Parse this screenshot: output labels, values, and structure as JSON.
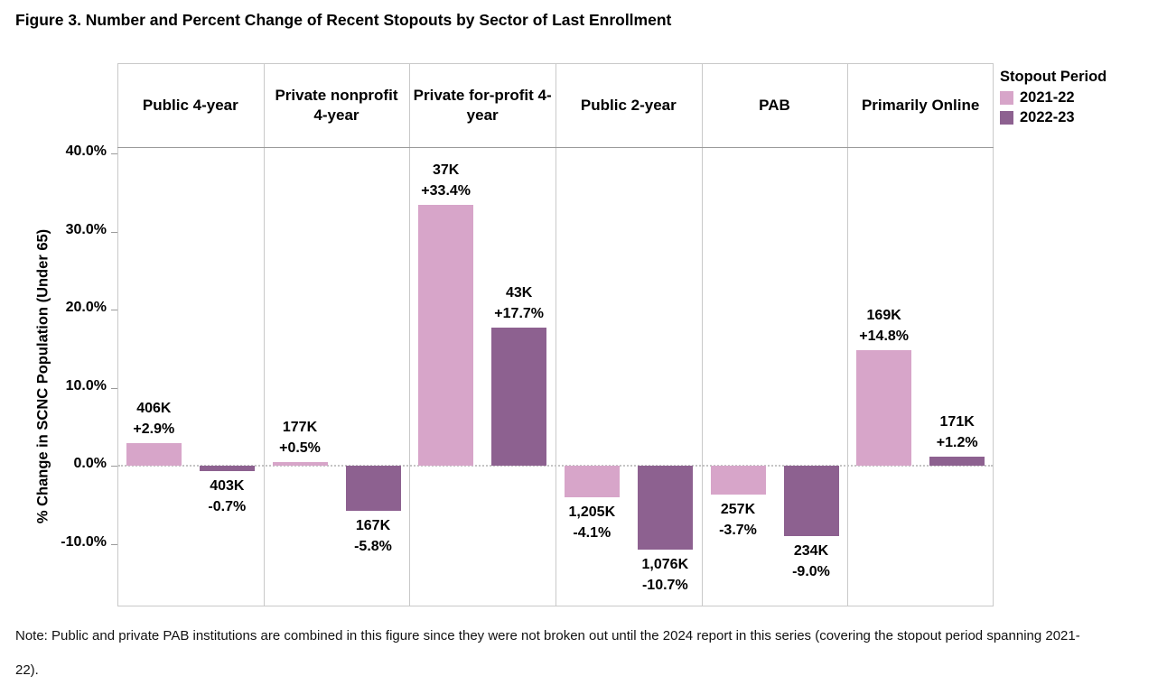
{
  "title": "Figure 3. Number and Percent Change of Recent Stopouts by Sector of Last Enrollment",
  "note": "Note: Public and private PAB institutions are combined in this figure since they were not broken out until the 2024 report in this series (covering the stopout period spanning 2021-22).",
  "colors": {
    "series_2021_22": "#d7a5c9",
    "series_2022_23": "#8d6190",
    "panel_border": "#c9c9c9",
    "header_rule": "#9a9a9a",
    "zero_line": "#c4c4c4"
  },
  "chart_data": {
    "type": "bar",
    "title": "Figure 3. Number and Percent Change of Recent Stopouts by Sector of Last Enrollment",
    "xlabel": "",
    "ylabel": "% Change in SCNC Population (Under 65)",
    "ylim": [
      -18,
      40.8
    ],
    "yticks": [
      {
        "value": 40,
        "label": "40.0%"
      },
      {
        "value": 30,
        "label": "30.0%"
      },
      {
        "value": 20,
        "label": "20.0%"
      },
      {
        "value": 10,
        "label": "10.0%"
      },
      {
        "value": 0,
        "label": "0.0%"
      },
      {
        "value": -10,
        "label": "-10.0%"
      }
    ],
    "grid": "zero-line-dotted-only",
    "categories": [
      "Public 4-year",
      "Private nonprofit 4-year",
      "Private for-profit 4-year",
      "Public 2-year",
      "PAB",
      "Primarily Online"
    ],
    "legend": {
      "title": "Stopout Period",
      "position": "top-right",
      "entries": [
        {
          "label": "2021-22",
          "color": "#d7a5c9"
        },
        {
          "label": "2022-23",
          "color": "#8d6190"
        }
      ]
    },
    "series": [
      {
        "name": "2021-22",
        "color": "#d7a5c9",
        "points": [
          {
            "category": "Public 4-year",
            "count": "406K",
            "pct": "+2.9%",
            "value": 2.9
          },
          {
            "category": "Private nonprofit 4-year",
            "count": "177K",
            "pct": "+0.5%",
            "value": 0.5
          },
          {
            "category": "Private for-profit 4-year",
            "count": "37K",
            "pct": "+33.4%",
            "value": 33.4
          },
          {
            "category": "Public 2-year",
            "count": "1,205K",
            "pct": "-4.1%",
            "value": -4.1
          },
          {
            "category": "PAB",
            "count": "257K",
            "pct": "-3.7%",
            "value": -3.7
          },
          {
            "category": "Primarily Online",
            "count": "169K",
            "pct": "+14.8%",
            "value": 14.8
          }
        ]
      },
      {
        "name": "2022-23",
        "color": "#8d6190",
        "points": [
          {
            "category": "Public 4-year",
            "count": "403K",
            "pct": "-0.7%",
            "value": -0.7
          },
          {
            "category": "Private nonprofit 4-year",
            "count": "167K",
            "pct": "-5.8%",
            "value": -5.8
          },
          {
            "category": "Private for-profit 4-year",
            "count": "43K",
            "pct": "+17.7%",
            "value": 17.7
          },
          {
            "category": "Public 2-year",
            "count": "1,076K",
            "pct": "-10.7%",
            "value": -10.7
          },
          {
            "category": "PAB",
            "count": "234K",
            "pct": "-9.0%",
            "value": -9.0
          },
          {
            "category": "Primarily Online",
            "count": "171K",
            "pct": "+1.2%",
            "value": 1.2
          }
        ]
      }
    ]
  }
}
